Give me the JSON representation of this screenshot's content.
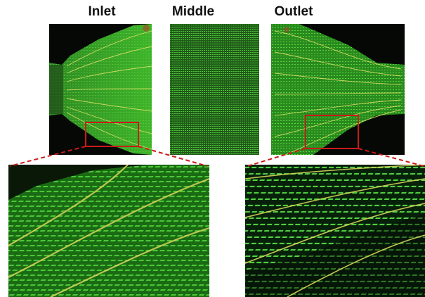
{
  "labels": {
    "inlet": "Inlet",
    "middle": "Middle",
    "outlet": "Outlet"
  },
  "colors": {
    "background": "#050805",
    "flow_green": "#3fb52a",
    "streamline": "#e8e36a",
    "highlight_box": "#cc1a1a"
  }
}
